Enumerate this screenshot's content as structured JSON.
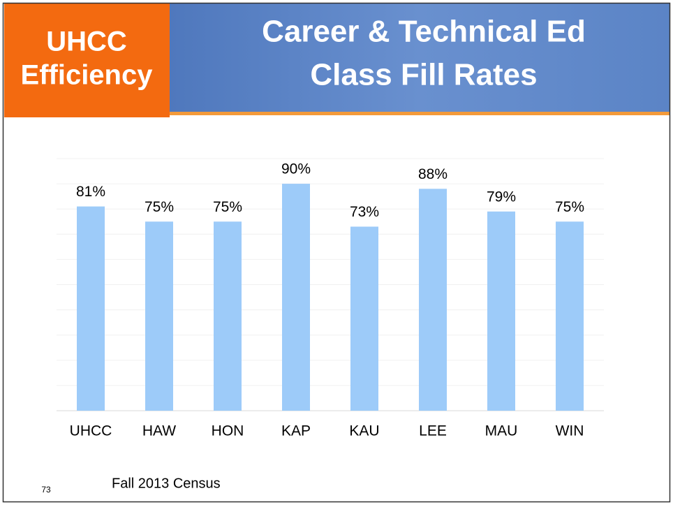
{
  "badge": [
    "UHCC",
    "Efficiency"
  ],
  "slide_number": "73",
  "note": "Fall 2013 Census",
  "chart_data": {
    "type": "bar",
    "title": [
      "Career & Technical Ed",
      "Class Fill Rates"
    ],
    "categories": [
      "UHCC",
      "HAW",
      "HON",
      "KAP",
      "KAU",
      "LEE",
      "MAU",
      "WIN"
    ],
    "values": [
      81,
      75,
      75,
      90,
      73,
      88,
      79,
      75
    ],
    "value_labels": [
      "81%",
      "75%",
      "75%",
      "90%",
      "73%",
      "88%",
      "79%",
      "75%"
    ],
    "color": "#9dcbf9",
    "ylim": [
      0,
      100
    ],
    "yticks": [
      0,
      10,
      20,
      30,
      40,
      50,
      60,
      70,
      80,
      90,
      100
    ],
    "grid": true
  }
}
